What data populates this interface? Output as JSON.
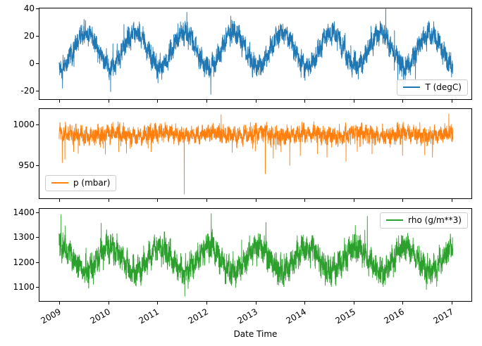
{
  "chart_data": {
    "type": "line",
    "xlabel": "Date Time",
    "xlim": [
      2008.6,
      2017.4
    ],
    "xticks": [
      2009,
      2010,
      2011,
      2012,
      2013,
      2014,
      2015,
      2016,
      2017
    ],
    "subplots": [
      {
        "name": "temperature",
        "legend_label": "T (degC)",
        "legend_position": "lower-right",
        "color": "#1f77b4",
        "ylim": [
          -26,
          40
        ],
        "yticks": [
          -20,
          0,
          20,
          40
        ],
        "gen": {
          "seed": 17,
          "n": 3600,
          "x0": 2009.0,
          "x1": 2017.02,
          "mean": 10,
          "seasonal": -12.5,
          "phase": 0.05,
          "noise": 8,
          "wander": 2.5,
          "pDown": 0.02,
          "ampDown": 12,
          "pUp": 0.02,
          "ampUp": 13
        },
        "outliers": [
          {
            "x": 2009.07,
            "y": -18
          },
          {
            "x": 2010.05,
            "y": -20.5
          },
          {
            "x": 2012.09,
            "y": -22.5
          },
          {
            "x": 2016.05,
            "y": -15
          }
        ]
      },
      {
        "name": "pressure",
        "legend_label": "p (mbar)",
        "legend_position": "lower-left",
        "color": "#ff7f0e",
        "ylim": [
          910,
          1019
        ],
        "yticks": [
          950,
          1000
        ],
        "gen": {
          "seed": 23,
          "n": 3600,
          "x0": 2009.0,
          "x1": 2017.02,
          "mean": 988,
          "seasonal": 2,
          "phase": 0.1,
          "noise": 11,
          "wander": 3.5,
          "pDown": 0.015,
          "ampDown": 30,
          "pUp": 0.01,
          "ampUp": 14
        },
        "outliers": [
          {
            "x": 2011.55,
            "y": 915
          },
          {
            "x": 2013.2,
            "y": 940
          },
          {
            "x": 2012.3,
            "y": 1012
          },
          {
            "x": 2016.94,
            "y": 1013
          }
        ]
      },
      {
        "name": "density",
        "legend_label": "rho (g/m**3)",
        "legend_position": "upper-right",
        "color": "#2ca02c",
        "ylim": [
          1043,
          1415
        ],
        "yticks": [
          1100,
          1200,
          1300,
          1400
        ],
        "gen": {
          "seed": 31,
          "n": 3600,
          "x0": 2009.0,
          "x1": 2017.02,
          "mean": 1212,
          "seasonal": 50,
          "phase": 0.05,
          "noise": 60,
          "wander": 18,
          "pDown": 0.01,
          "ampDown": 30,
          "pUp": 0.015,
          "ampUp": 80
        },
        "outliers": [
          {
            "x": 2009.04,
            "y": 1392
          },
          {
            "x": 2012.1,
            "y": 1396
          },
          {
            "x": 2011.56,
            "y": 1062
          },
          {
            "x": 2015.28,
            "y": 1385
          }
        ]
      }
    ]
  }
}
